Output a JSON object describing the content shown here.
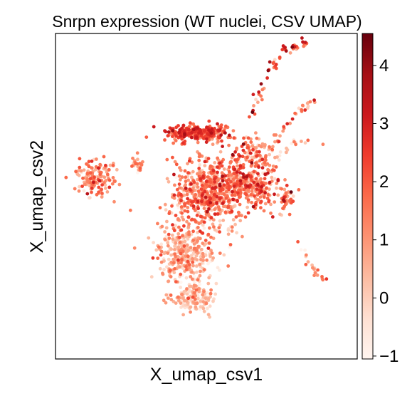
{
  "chart_data": {
    "type": "scatter",
    "title": "Snrpn expression (WT nuclei, CSV UMAP)",
    "xlabel": "X_umap_csv1",
    "ylabel": "X_umap_csv2",
    "xticks": false,
    "yticks": false,
    "grid": false,
    "colormap": "Reds",
    "color_range": [
      -1.05,
      4.55
    ],
    "colorbar_ticks": [
      -1,
      0,
      1,
      2,
      3,
      4
    ],
    "colorbar_tick_labels": [
      "−1",
      "0",
      "1",
      "2",
      "3",
      "4"
    ],
    "colorbar_colors": [
      "#fff5f0",
      "#fee0d2",
      "#fcbba1",
      "#fc9272",
      "#fb6a4a",
      "#ef3b2c",
      "#cb181d",
      "#a50f15",
      "#67000d"
    ],
    "xlim": [
      -10,
      10
    ],
    "ylim": [
      -10,
      10
    ],
    "clusters": [
      {
        "cx": -0.8,
        "cy": -6.2,
        "sx": 1.3,
        "sy": 0.9,
        "n": 170,
        "mean": 0.1,
        "spread": 0.8
      },
      {
        "cx": -1.3,
        "cy": -3.5,
        "sx": 1.7,
        "sy": 1.6,
        "n": 330,
        "mean": 0.5,
        "spread": 0.8
      },
      {
        "cx": 0.2,
        "cy": 0.2,
        "sx": 2.3,
        "sy": 2.2,
        "n": 650,
        "mean": 1.3,
        "spread": 0.9
      },
      {
        "cx": -0.8,
        "cy": 3.9,
        "sx": 1.8,
        "sy": 0.5,
        "n": 240,
        "mean": 2.0,
        "spread": 0.9
      },
      {
        "cx": 3.0,
        "cy": 0.7,
        "sx": 1.8,
        "sy": 1.3,
        "n": 280,
        "mean": 1.5,
        "spread": 0.9
      },
      {
        "cx": -7.3,
        "cy": 1.1,
        "sx": 1.1,
        "sy": 1.0,
        "n": 150,
        "mean": 1.1,
        "spread": 0.9
      },
      {
        "cx": -4.6,
        "cy": 1.9,
        "sx": 0.4,
        "sy": 0.5,
        "n": 20,
        "mean": 1.0,
        "spread": 0.8
      },
      {
        "cx": 3.3,
        "cy": 2.9,
        "sx": 0.8,
        "sy": 0.7,
        "n": 60,
        "mean": 0.9,
        "spread": 0.9
      },
      {
        "cx": 5.3,
        "cy": -0.2,
        "sx": 0.4,
        "sy": 0.6,
        "n": 35,
        "mean": 1.3,
        "spread": 0.9
      }
    ],
    "trails": [
      {
        "points": [
          [
            2.2,
            1.5
          ],
          [
            2.8,
            4.5
          ],
          [
            3.9,
            7.2
          ],
          [
            5.2,
            9.0
          ],
          [
            6.6,
            9.4
          ]
        ],
        "n": 70,
        "jitter": 0.15,
        "mean": 2.1,
        "spread": 1.0
      },
      {
        "points": [
          [
            3.7,
            1.6
          ],
          [
            5.0,
            4.2
          ],
          [
            7.1,
            5.9
          ]
        ],
        "n": 40,
        "jitter": 0.14,
        "mean": 1.1,
        "spread": 0.9
      },
      {
        "points": [
          [
            5.1,
            -0.8
          ],
          [
            6.8,
            -4.2
          ],
          [
            8.0,
            -5.3
          ]
        ],
        "n": 22,
        "jitter": 0.12,
        "mean": 1.2,
        "spread": 1.0
      },
      {
        "points": [
          [
            4.6,
            2.3
          ],
          [
            5.8,
            3.3
          ],
          [
            7.6,
            3.4
          ]
        ],
        "n": 18,
        "jitter": 0.12,
        "mean": 0.5,
        "spread": 0.8
      },
      {
        "points": [
          [
            2.4,
            1.7
          ],
          [
            1.4,
            3.6
          ],
          [
            0.9,
            4.5
          ]
        ],
        "n": 20,
        "jitter": 0.15,
        "mean": 1.6,
        "spread": 0.9
      }
    ]
  }
}
